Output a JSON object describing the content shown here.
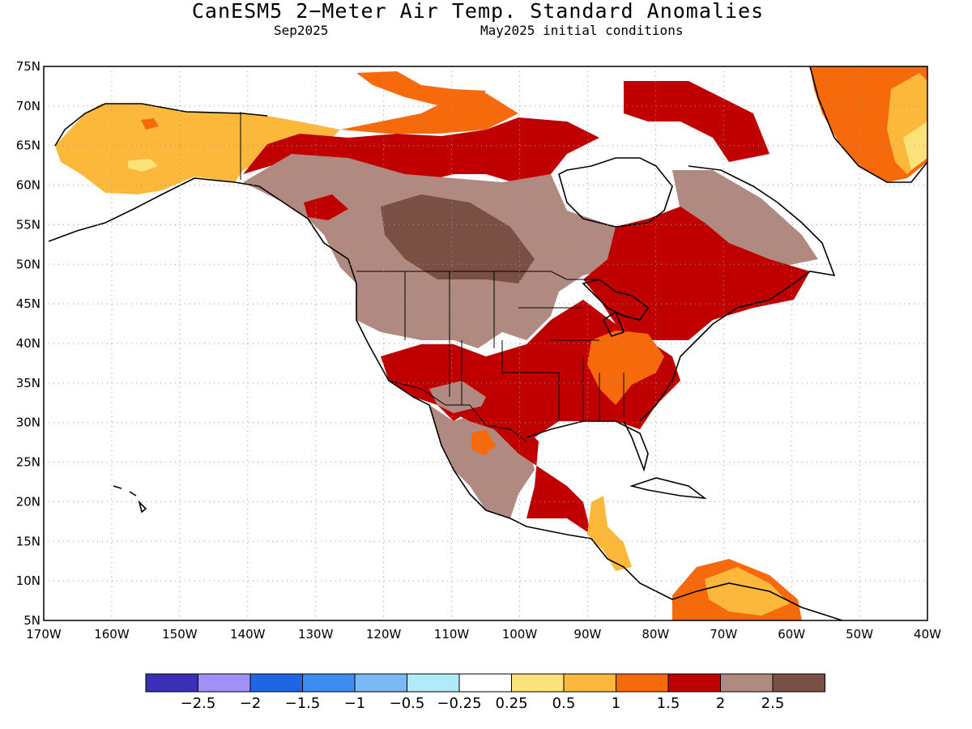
{
  "title": "CanESM5 2−Meter Air Temp. Standard Anomalies",
  "subtitle_left": "Sep2025",
  "subtitle_right": "May2025 initial conditions",
  "map": {
    "lat_range": [
      5,
      75
    ],
    "lon_range": [
      -170,
      -40
    ],
    "lat_ticks": [
      "75N",
      "70N",
      "65N",
      "60N",
      "55N",
      "50N",
      "45N",
      "40N",
      "35N",
      "30N",
      "25N",
      "20N",
      "15N",
      "10N",
      "5N"
    ],
    "lon_ticks": [
      "170W",
      "160W",
      "150W",
      "140W",
      "130W",
      "120W",
      "110W",
      "100W",
      "90W",
      "80W",
      "70W",
      "60W",
      "50W",
      "40W"
    ],
    "grid": "dotted"
  },
  "colorbar": {
    "colors": [
      "#3b2fb8",
      "#a090f8",
      "#1f66e6",
      "#3d8ef0",
      "#7cb8f5",
      "#b0ecf8",
      "#ffffff",
      "#fde27a",
      "#fbb83a",
      "#f76a0c",
      "#c00000",
      "#b08a80",
      "#7a5045"
    ],
    "labels": [
      "−2.5",
      "−2",
      "−1.5",
      "−1",
      "−0.5",
      "−0.25",
      "0.25",
      "0.5",
      "1",
      "1.5",
      "2",
      "2.5"
    ]
  }
}
